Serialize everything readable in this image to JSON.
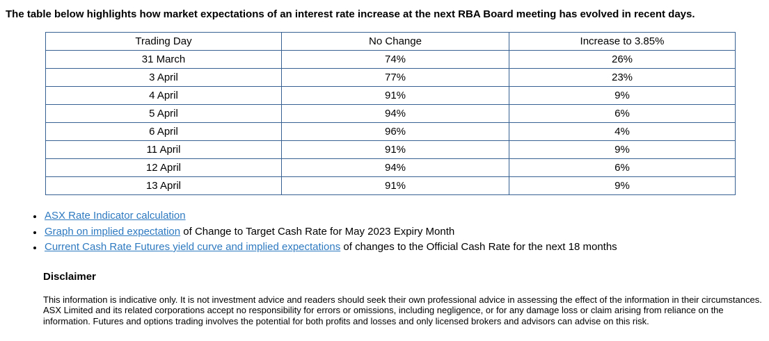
{
  "page": {
    "intro": "The table below highlights how market expectations of an interest rate increase at the next RBA Board meeting has evolved in recent days."
  },
  "table": {
    "columns": [
      "Trading Day",
      "No Change",
      "Increase to 3.85%"
    ],
    "rows": [
      [
        "31 March",
        "74%",
        "26%"
      ],
      [
        "3 April",
        "77%",
        "23%"
      ],
      [
        "4 April",
        "91%",
        "9%"
      ],
      [
        "5 April",
        "94%",
        "6%"
      ],
      [
        "6 April",
        "96%",
        "4%"
      ],
      [
        "11 April",
        "91%",
        "9%"
      ],
      [
        "12 April",
        "94%",
        "6%"
      ],
      [
        "13 April",
        "91%",
        "9%"
      ]
    ]
  },
  "links": {
    "items": [
      {
        "link": "ASX Rate Indicator calculation",
        "rest": ""
      },
      {
        "link": "Graph on implied expectation",
        "rest": " of Change to Target Cash Rate for May 2023 Expiry Month"
      },
      {
        "link": "Current Cash Rate Futures yield curve and implied expectations",
        "rest": " of changes to the Official Cash Rate for the next 18 months"
      }
    ]
  },
  "disclaimer": {
    "title": "Disclaimer",
    "body": "This information is indicative only. It is not investment advice and readers should seek their own professional advice in assessing the effect of the information in their circumstances. ASX Limited and its related corporations accept no responsibility for errors or omissions, including negligence, or for any damage loss or claim arising from reliance on the information. Futures and options trading involves the potential for both profits and losses and only licensed brokers and advisors can advise on this risk."
  },
  "colors": {
    "table_border": "#366092",
    "link": "#2d79c0",
    "text": "#000000",
    "background": "#ffffff"
  }
}
